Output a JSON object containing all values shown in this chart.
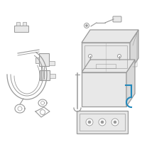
{
  "line_color": "#999999",
  "blue_color": "#2288bb",
  "fill_light": "#e8e8e8",
  "fill_mid": "#d8d8d8",
  "fig_size": [
    2.0,
    2.0
  ],
  "dpi": 100
}
